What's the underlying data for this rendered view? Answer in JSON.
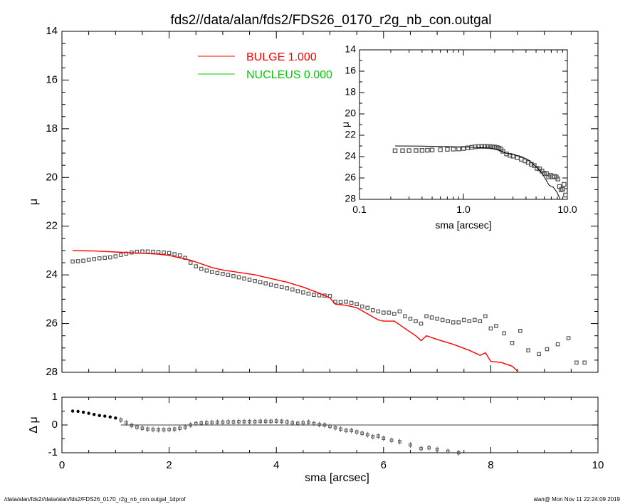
{
  "title": "fds2//data/alan/fds2/FDS26_0170_r2g_nb_con.outgal",
  "footer": {
    "left": "/data/alan/fds2//data/alan/fds2/FDS26_0170_r2g_nb_con.outgal_1dprof",
    "right": "alan@  Mon Nov 11 22:24:09 2019"
  },
  "colors": {
    "bulge": "#ff0000",
    "nucleus": "#00cc00",
    "data": "#555555",
    "axes": "#000000"
  },
  "chart_data": [
    {
      "panel": "main",
      "type": "scatter",
      "xlabel": "sma [arcsec]",
      "ylabel": "μ",
      "xlim": [
        0,
        10
      ],
      "ylim": [
        28,
        14
      ],
      "yaxis_inverted": true,
      "x_ticks": [
        0,
        2,
        4,
        6,
        8,
        10
      ],
      "y_ticks": [
        14,
        16,
        18,
        20,
        22,
        24,
        26,
        28
      ],
      "legend": {
        "placement": "top-left",
        "entries": [
          {
            "label": "BULGE  1.000",
            "color": "#ff0000"
          },
          {
            "label": "NUCLEUS  0.000",
            "color": "#00cc00"
          }
        ]
      },
      "series": [
        {
          "name": "BULGE  1.000",
          "kind": "line",
          "color": "#ff0000",
          "x": [
            0.2,
            0.6,
            1.0,
            1.4,
            1.8,
            2.0,
            2.2,
            2.4,
            2.6,
            2.8,
            3.0,
            3.3,
            3.6,
            3.9,
            4.2,
            4.5,
            4.8,
            5.0,
            5.1,
            5.3,
            5.5,
            5.7,
            5.9,
            6.0,
            6.2,
            6.4,
            6.6,
            6.7,
            6.8,
            7.0,
            7.3,
            7.6,
            7.8,
            7.9,
            8.0,
            8.2,
            8.4,
            8.5
          ],
          "y": [
            23.0,
            23.02,
            23.06,
            23.1,
            23.15,
            23.2,
            23.3,
            23.4,
            23.55,
            23.7,
            23.8,
            23.9,
            24.0,
            24.15,
            24.3,
            24.5,
            24.75,
            24.95,
            25.2,
            25.25,
            25.35,
            25.6,
            25.85,
            25.9,
            25.9,
            26.2,
            26.5,
            26.7,
            26.5,
            26.65,
            26.85,
            27.1,
            27.3,
            27.2,
            27.55,
            27.6,
            27.75,
            27.95
          ]
        },
        {
          "name": "",
          "kind": "points",
          "color": "#555555",
          "x": [
            0.2,
            0.3,
            0.4,
            0.5,
            0.6,
            0.7,
            0.8,
            0.9,
            1.0,
            1.1,
            1.2,
            1.3,
            1.4,
            1.5,
            1.6,
            1.7,
            1.8,
            1.9,
            2.0,
            2.1,
            2.2,
            2.3,
            2.4,
            2.5,
            2.6,
            2.7,
            2.8,
            2.9,
            3.0,
            3.1,
            3.2,
            3.3,
            3.4,
            3.5,
            3.6,
            3.7,
            3.8,
            3.9,
            4.0,
            4.1,
            4.2,
            4.3,
            4.4,
            4.5,
            4.6,
            4.7,
            4.8,
            4.9,
            5.0,
            5.1,
            5.2,
            5.3,
            5.4,
            5.5,
            5.6,
            5.7,
            5.8,
            5.9,
            6.0,
            6.1,
            6.2,
            6.3,
            6.4,
            6.5,
            6.6,
            6.7,
            6.8,
            6.9,
            7.0,
            7.1,
            7.2,
            7.3,
            7.4,
            7.5,
            7.6,
            7.7,
            7.8,
            7.9,
            8.0,
            8.1,
            8.25,
            8.4,
            8.55,
            8.7,
            8.9,
            9.05,
            9.25,
            9.45,
            9.6,
            9.75
          ],
          "y": [
            23.45,
            23.44,
            23.42,
            23.38,
            23.35,
            23.32,
            23.3,
            23.28,
            23.24,
            23.18,
            23.13,
            23.08,
            23.05,
            23.04,
            23.04,
            23.05,
            23.06,
            23.08,
            23.1,
            23.15,
            23.2,
            23.3,
            23.5,
            23.65,
            23.75,
            23.82,
            23.88,
            23.92,
            23.96,
            24.0,
            24.05,
            24.1,
            24.15,
            24.2,
            24.25,
            24.3,
            24.35,
            24.4,
            24.45,
            24.5,
            24.55,
            24.6,
            24.67,
            24.72,
            24.77,
            24.82,
            24.84,
            24.85,
            24.87,
            25.1,
            25.12,
            25.1,
            25.15,
            25.2,
            25.3,
            25.35,
            25.45,
            25.5,
            25.55,
            25.55,
            25.6,
            25.5,
            25.7,
            25.8,
            25.9,
            26.0,
            25.7,
            25.75,
            25.8,
            25.85,
            25.9,
            25.95,
            25.95,
            25.85,
            25.9,
            25.85,
            25.9,
            25.7,
            26.2,
            26.1,
            26.4,
            26.8,
            26.3,
            27.1,
            27.25,
            27.05,
            26.85,
            26.6,
            27.6,
            27.6
          ]
        }
      ]
    },
    {
      "panel": "residual",
      "type": "scatter",
      "xlabel": "sma [arcsec]",
      "ylabel": "Δ μ",
      "xlim": [
        0,
        10
      ],
      "ylim": [
        -1,
        1
      ],
      "x_ticks": [
        0,
        2,
        4,
        6,
        8,
        10
      ],
      "y_ticks": [
        -1,
        0,
        1
      ],
      "x": [
        0.2,
        0.3,
        0.4,
        0.5,
        0.6,
        0.7,
        0.8,
        0.9,
        1.0,
        1.1,
        1.2,
        1.3,
        1.4,
        1.5,
        1.6,
        1.7,
        1.8,
        1.9,
        2.0,
        2.1,
        2.2,
        2.3,
        2.4,
        2.5,
        2.6,
        2.7,
        2.8,
        2.9,
        3.0,
        3.1,
        3.2,
        3.3,
        3.4,
        3.5,
        3.6,
        3.7,
        3.8,
        3.9,
        4.0,
        4.1,
        4.2,
        4.3,
        4.4,
        4.5,
        4.6,
        4.7,
        4.8,
        4.9,
        5.0,
        5.1,
        5.2,
        5.3,
        5.4,
        5.5,
        5.6,
        5.7,
        5.8,
        5.9,
        6.0,
        6.15,
        6.3,
        6.5,
        6.7,
        6.85,
        7.0,
        7.2,
        7.4
      ],
      "y": [
        0.5,
        0.49,
        0.46,
        0.42,
        0.38,
        0.34,
        0.32,
        0.29,
        0.25,
        0.18,
        0.08,
        -0.02,
        -0.08,
        -0.12,
        -0.15,
        -0.16,
        -0.17,
        -0.17,
        -0.16,
        -0.15,
        -0.12,
        -0.08,
        0.0,
        0.05,
        0.07,
        0.08,
        0.09,
        0.1,
        0.1,
        0.11,
        0.11,
        0.12,
        0.12,
        0.12,
        0.12,
        0.13,
        0.13,
        0.13,
        0.14,
        0.13,
        0.11,
        0.08,
        0.06,
        0.08,
        0.1,
        0.05,
        0.02,
        0.0,
        -0.05,
        -0.1,
        -0.15,
        -0.2,
        -0.2,
        -0.25,
        -0.3,
        -0.35,
        -0.42,
        -0.4,
        -0.48,
        -0.55,
        -0.6,
        -0.72,
        -0.85,
        -0.82,
        -0.88,
        -0.95,
        -1.0
      ]
    },
    {
      "panel": "inset",
      "type": "scatter",
      "xlabel": "sma [arcsec]",
      "ylabel": "μ",
      "x_scale": "log",
      "xlim": [
        0.1,
        10.0
      ],
      "ylim": [
        28,
        14
      ],
      "yaxis_inverted": true,
      "x_ticks": [
        0.1,
        1.0,
        10.0
      ],
      "x_tick_labels": [
        "0.1",
        "1.0",
        "10.0"
      ],
      "y_ticks": [
        14,
        16,
        18,
        20,
        22,
        24,
        26,
        28
      ],
      "series": [
        {
          "name": "",
          "kind": "line",
          "color": "#000000",
          "x": [
            0.22,
            0.4,
            0.7,
            1.0,
            1.4,
            1.8,
            2.2,
            2.6,
            3.0,
            3.6,
            4.2,
            5.0,
            5.5,
            6.0,
            6.7,
            7.3,
            7.9,
            8.5
          ],
          "y": [
            23.0,
            23.02,
            23.06,
            23.1,
            23.15,
            23.2,
            23.4,
            23.7,
            23.8,
            24.0,
            24.3,
            24.95,
            25.35,
            25.9,
            26.7,
            26.85,
            27.3,
            27.95
          ]
        },
        {
          "name": "",
          "kind": "points",
          "color": "#555555",
          "x": [
            0.22,
            0.26,
            0.3,
            0.35,
            0.4,
            0.45,
            0.5,
            0.6,
            0.7,
            0.8,
            0.9,
            1.0,
            1.1,
            1.2,
            1.3,
            1.4,
            1.5,
            1.6,
            1.7,
            1.8,
            1.9,
            2.0,
            2.1,
            2.2,
            2.3,
            2.4,
            2.6,
            2.8,
            3.0,
            3.3,
            3.6,
            3.9,
            4.2,
            4.5,
            4.8,
            5.1,
            5.4,
            5.7,
            6.0,
            6.3,
            6.6,
            6.9,
            7.2,
            7.5,
            7.8,
            8.1,
            8.4,
            8.7,
            9.0,
            9.3,
            9.6
          ],
          "y": [
            23.45,
            23.45,
            23.44,
            23.43,
            23.42,
            23.4,
            23.38,
            23.35,
            23.32,
            23.3,
            23.28,
            23.24,
            23.18,
            23.13,
            23.08,
            23.05,
            23.04,
            23.04,
            23.05,
            23.06,
            23.08,
            23.1,
            23.15,
            23.2,
            23.3,
            23.5,
            23.75,
            23.88,
            23.96,
            24.1,
            24.25,
            24.4,
            24.55,
            24.72,
            24.84,
            25.1,
            25.15,
            25.35,
            25.55,
            25.6,
            25.9,
            25.75,
            25.9,
            25.85,
            25.9,
            26.1,
            26.8,
            27.1,
            27.05,
            26.6,
            27.6
          ]
        }
      ]
    }
  ]
}
